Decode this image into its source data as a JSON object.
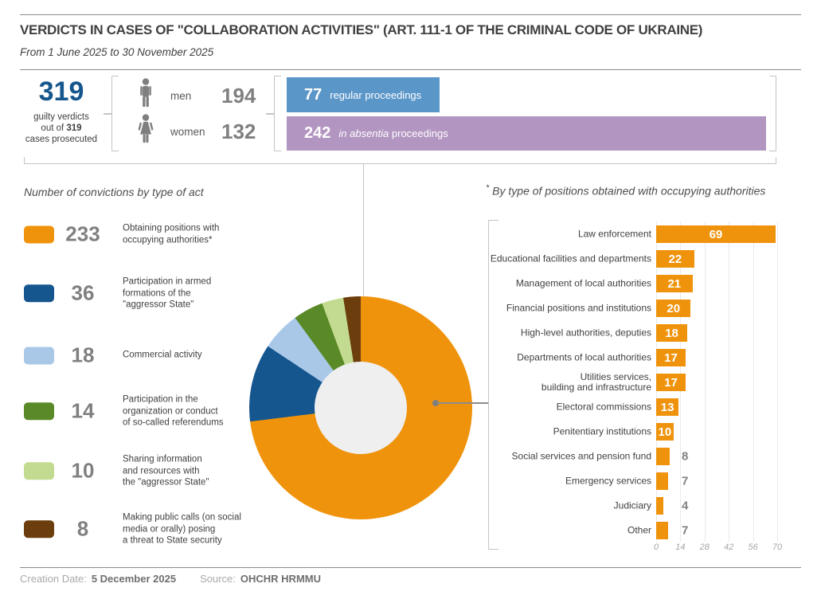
{
  "header": {
    "title": "VERDICTS IN CASES OF \"COLLABORATION ACTIVITIES\" (ART. 111-1 OF THE CRIMINAL CODE OF UKRAINE)",
    "subtitle": "From 1 June 2025 to 30 November 2025"
  },
  "summary": {
    "total_value": "319",
    "caption_line1": "guilty verdicts",
    "caption_line2_prefix": "out of ",
    "caption_line2_bold": "319",
    "caption_line3": "cases prosecuted",
    "gender": [
      {
        "icon": "man-icon",
        "label": "men",
        "value": "194"
      },
      {
        "icon": "woman-icon",
        "label": "women",
        "value": "132"
      }
    ],
    "proceedings": [
      {
        "value": "77",
        "label": "regular proceedings",
        "label_italic": "",
        "numeric": 77,
        "color": "#5b96c9"
      },
      {
        "value": "242",
        "label": "proceedings",
        "label_italic": "in absentia",
        "numeric": 242,
        "color": "#b295c1"
      }
    ]
  },
  "colors": {
    "accent_orange": "#f0930c",
    "dark_blue": "#15568d",
    "gray_number": "#808080"
  },
  "chart_data": [
    {
      "type": "pie",
      "title": "Number of convictions by type of act",
      "total": 319,
      "slices": [
        {
          "label": "Obtaining positions with occupying authorities*",
          "value": 233,
          "color": "#f0930c"
        },
        {
          "label": "Participation in armed\nformations of the\n\"aggressor State\"",
          "value": 36,
          "color": "#16568f"
        },
        {
          "label": "Commercial activity",
          "value": 18,
          "color": "#a9c8e8"
        },
        {
          "label": "Participation in the\norganization or conduct\nof so-called referendums",
          "value": 14,
          "color": "#5a8a28"
        },
        {
          "label": "Sharing information\nand resources with\nthe \"aggressor State\"",
          "value": 10,
          "color": "#c3db90"
        },
        {
          "label": "Making public calls (on social\nmedia or orally) posing\na threat to State security",
          "value": 8,
          "color": "#6c3d0d"
        }
      ],
      "legend_position": "left",
      "hole_color": "#efefef"
    },
    {
      "type": "bar",
      "title_prefix": "*",
      "title": "By type of positions obtained with occupying authorities",
      "categories": [
        "Law enforcement",
        "Educational facilities and departments",
        "Management of local authorities",
        "Financial positions and institutions",
        "High-level authorities, deputies",
        "Departments of local authorities",
        "Utilities services,\nbuilding and infrastructure",
        "Electoral commissions",
        "Penitentiary institutions",
        "Social services and pension fund",
        "Emergency services",
        "Judiciary",
        "Other"
      ],
      "values": [
        69,
        22,
        21,
        20,
        18,
        17,
        17,
        13,
        10,
        8,
        7,
        4,
        7
      ],
      "bar_color": "#f0930c",
      "x_ticks": [
        0,
        14,
        28,
        42,
        56,
        70
      ],
      "xlim": [
        0,
        70
      ],
      "inside_label_min": 10,
      "grid": true,
      "orientation": "horizontal"
    }
  ],
  "footer": {
    "creation_label": "Creation Date:",
    "creation_value": "5 December 2025",
    "source_label": "Source:",
    "source_value": "OHCHR HRMMU"
  }
}
